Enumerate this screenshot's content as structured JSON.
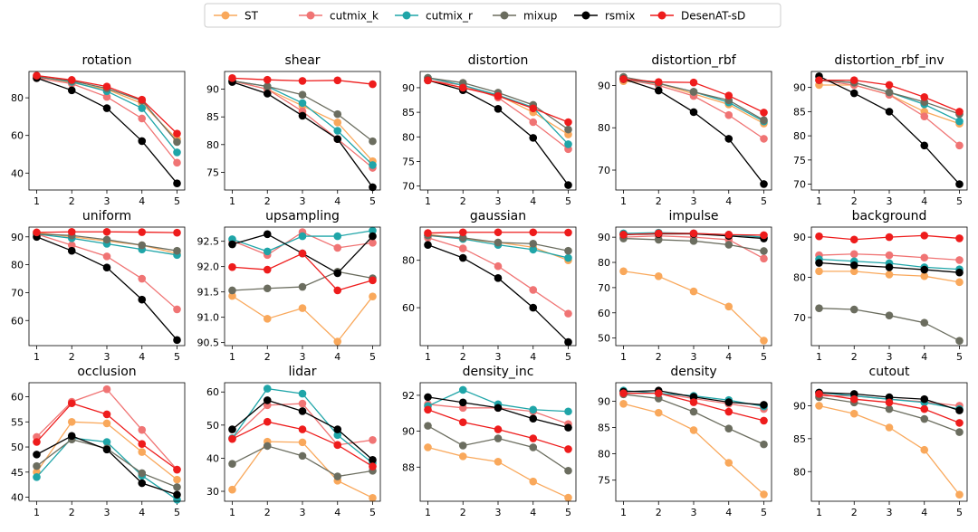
{
  "chart_data": {
    "type": "line",
    "legend": {
      "placement": "top-center",
      "entries": [
        {
          "name": "ST",
          "color": "#f9a85b"
        },
        {
          "name": "cutmix_k",
          "color": "#f07474"
        },
        {
          "name": "cutmix_r",
          "color": "#1fa5a8"
        },
        {
          "name": "mixup",
          "color": "#6b6d5f"
        },
        {
          "name": "rsmix",
          "color": "#000000"
        },
        {
          "name": "DesenAT-sD",
          "color": "#ee1c1c"
        }
      ]
    },
    "x": [
      1,
      2,
      3,
      4,
      5
    ],
    "panels": [
      {
        "title": "rotation",
        "ylim": [
          31,
          94
        ],
        "yticks": [
          40,
          60,
          80
        ],
        "series": {
          "ST": [
            91.5,
            88,
            84.5,
            77,
            58
          ],
          "cutmix_k": [
            90.5,
            87.5,
            80.5,
            69,
            45.5
          ],
          "cutmix_r": [
            91.3,
            88.5,
            83.5,
            74.5,
            51
          ],
          "mixup": [
            91,
            89,
            85,
            78.5,
            56.5
          ],
          "rsmix": [
            90.5,
            84,
            74.5,
            57,
            34.5
          ],
          "DesenAT-sD": [
            91.8,
            89.5,
            86,
            79,
            61
          ]
        }
      },
      {
        "title": "shear",
        "ylim": [
          71.8,
          93.2
        ],
        "yticks": [
          75,
          80,
          85,
          90
        ],
        "series": {
          "ST": [
            91.5,
            90,
            87,
            84,
            77
          ],
          "cutmix_k": [
            91.5,
            90,
            86,
            81,
            75.8
          ],
          "cutmix_r": [
            91.5,
            90.5,
            87.5,
            82.5,
            76.3
          ],
          "mixup": [
            91.5,
            90.5,
            89,
            85.5,
            80.6
          ],
          "rsmix": [
            91.3,
            89.2,
            85.2,
            81,
            72.3
          ],
          "DesenAT-sD": [
            92,
            91.7,
            91.5,
            91.6,
            90.9
          ]
        }
      },
      {
        "title": "distortion",
        "ylim": [
          69.2,
          93.3
        ],
        "yticks": [
          70,
          75,
          80,
          85,
          90
        ],
        "series": {
          "ST": [
            91.5,
            90,
            88.5,
            85,
            80.5
          ],
          "cutmix_k": [
            91.5,
            90.5,
            88,
            83,
            77.5
          ],
          "cutmix_r": [
            92,
            90.5,
            88.5,
            86,
            78.5
          ],
          "mixup": [
            92,
            91,
            89,
            86.5,
            81.5
          ],
          "rsmix": [
            91.5,
            89.5,
            85.7,
            79.8,
            70.2
          ],
          "DesenAT-sD": [
            91.5,
            90,
            88.3,
            85.8,
            83
          ]
        }
      },
      {
        "title": "distortion_rbf",
        "ylim": [
          65.3,
          93.3
        ],
        "yticks": [
          70,
          80,
          90
        ],
        "series": {
          "ST": [
            91,
            90.5,
            88,
            85.5,
            81
          ],
          "cutmix_k": [
            91.5,
            90,
            87.5,
            83,
            77.4
          ],
          "cutmix_r": [
            91.5,
            90.5,
            88.5,
            86,
            81.5
          ],
          "mixup": [
            92,
            90.5,
            88.5,
            86.5,
            81.8
          ],
          "rsmix": [
            91.5,
            88.8,
            83.7,
            77.4,
            66.7
          ],
          "DesenAT-sD": [
            91.5,
            90.8,
            90.7,
            87.6,
            83.6
          ]
        }
      },
      {
        "title": "distortion_rbf_inv",
        "ylim": [
          68.8,
          93.3
        ],
        "yticks": [
          70,
          75,
          80,
          85,
          90
        ],
        "series": {
          "ST": [
            90.5,
            90.5,
            88.5,
            85,
            82.5
          ],
          "cutmix_k": [
            91.5,
            90.5,
            88.5,
            84,
            78
          ],
          "cutmix_r": [
            91.5,
            91,
            89,
            86.5,
            83
          ],
          "mixup": [
            91.5,
            91,
            89,
            87,
            84.5
          ],
          "rsmix": [
            92.3,
            88.8,
            85,
            78,
            70
          ],
          "DesenAT-sD": [
            91.5,
            91.5,
            90.5,
            88,
            85
          ]
        }
      },
      {
        "title": "uniform",
        "ylim": [
          51,
          93.5
        ],
        "yticks": [
          60,
          70,
          80,
          90
        ],
        "series": {
          "ST": [
            91.5,
            90,
            88.5,
            87,
            84
          ],
          "cutmix_k": [
            91,
            87,
            83,
            75,
            64
          ],
          "cutmix_r": [
            91,
            89.5,
            87.5,
            85.5,
            83.5
          ],
          "mixup": [
            91,
            90.5,
            89,
            87,
            85
          ],
          "rsmix": [
            90,
            85,
            79,
            67.5,
            53
          ],
          "DesenAT-sD": [
            91.6,
            91.8,
            91.8,
            91.7,
            91.5
          ]
        }
      },
      {
        "title": "upsampling",
        "ylim": [
          90.44,
          92.78
        ],
        "yticks": [
          90.5,
          91.0,
          91.5,
          92.0,
          92.5
        ],
        "tick_decimals": 1,
        "series": {
          "ST": [
            91.42,
            90.97,
            91.18,
            90.52,
            91.41
          ],
          "cutmix_k": [
            92.51,
            92.23,
            92.68,
            92.37,
            92.47
          ],
          "cutmix_r": [
            92.54,
            92.3,
            92.6,
            92.6,
            92.71
          ],
          "mixup": [
            91.53,
            91.57,
            91.6,
            91.9,
            91.77
          ],
          "rsmix": [
            92.44,
            92.64,
            92.26,
            91.87,
            92.6
          ],
          "DesenAT-sD": [
            91.99,
            91.94,
            92.26,
            91.53,
            91.73
          ]
        }
      },
      {
        "title": "gaussian",
        "ylim": [
          44,
          94
        ],
        "yticks": [
          60,
          80
        ],
        "series": {
          "ST": [
            91,
            89,
            87.5,
            85.5,
            80
          ],
          "cutmix_k": [
            89.5,
            85,
            77.5,
            67.5,
            57.5
          ],
          "cutmix_r": [
            90.5,
            89,
            86.5,
            84.5,
            81
          ],
          "mixup": [
            90.5,
            89.5,
            87.5,
            87,
            84
          ],
          "rsmix": [
            86.5,
            81,
            72.5,
            60,
            45.5
          ],
          "DesenAT-sD": [
            91.5,
            91.8,
            91.8,
            91.8,
            91.7
          ]
        }
      },
      {
        "title": "impulse",
        "ylim": [
          47,
          94
        ],
        "yticks": [
          50,
          60,
          70,
          80,
          90
        ],
        "series": {
          "ST": [
            76.5,
            74.5,
            68.5,
            62.5,
            49
          ],
          "cutmix_k": [
            90,
            90.5,
            90,
            89,
            81.5
          ],
          "cutmix_r": [
            91.5,
            91.8,
            91.5,
            91,
            90
          ],
          "mixup": [
            89.5,
            89,
            88.5,
            87,
            84.5
          ],
          "rsmix": [
            91,
            91.3,
            91.3,
            90.5,
            89.5
          ],
          "DesenAT-sD": [
            91,
            91.5,
            91.5,
            91,
            90.8
          ]
        }
      },
      {
        "title": "background",
        "ylim": [
          63,
          92.5
        ],
        "yticks": [
          70,
          80,
          90
        ],
        "series": {
          "ST": [
            81.5,
            81.5,
            80.7,
            80.3,
            78.8
          ],
          "cutmix_k": [
            85.5,
            85.8,
            85.5,
            84.9,
            84.3
          ],
          "cutmix_r": [
            84.5,
            84,
            83.5,
            82.5,
            82
          ],
          "mixup": [
            72.3,
            72,
            70.5,
            68.7,
            64.2
          ],
          "rsmix": [
            83.6,
            83,
            82.5,
            81.9,
            81.2
          ],
          "DesenAT-sD": [
            90.2,
            89.4,
            90,
            90.4,
            89.7
          ]
        }
      },
      {
        "title": "occlusion",
        "ylim": [
          39.2,
          62.8
        ],
        "yticks": [
          40,
          45,
          50,
          55,
          60
        ],
        "series": {
          "ST": [
            45,
            55,
            54.7,
            49,
            43.5
          ],
          "cutmix_k": [
            52,
            59,
            61.5,
            53.4,
            45.5
          ],
          "cutmix_r": [
            44,
            51.8,
            51,
            44.3,
            39.5
          ],
          "mixup": [
            46.2,
            51.5,
            49.7,
            44.8,
            42
          ],
          "rsmix": [
            48.5,
            52.2,
            49.5,
            42.8,
            40.5
          ],
          "DesenAT-sD": [
            51,
            58.7,
            56.5,
            50.6,
            45.5
          ]
        }
      },
      {
        "title": "lidar",
        "ylim": [
          27,
          62.8
        ],
        "yticks": [
          30,
          40,
          50,
          60
        ],
        "series": {
          "ST": [
            30.5,
            45,
            44.8,
            33.2,
            28
          ],
          "cutmix_k": [
            46,
            56,
            56.5,
            44,
            45.5
          ],
          "cutmix_r": [
            46,
            61,
            59.5,
            47,
            38.5
          ],
          "mixup": [
            38.3,
            43.7,
            40.7,
            34.5,
            36.2
          ],
          "rsmix": [
            48.7,
            57.5,
            54.2,
            48.7,
            39.5
          ],
          "DesenAT-sD": [
            45.8,
            51,
            48.7,
            44,
            37.5
          ]
        }
      },
      {
        "title": "density_inc",
        "ylim": [
          86.1,
          92.7
        ],
        "yticks": [
          88,
          90,
          92
        ],
        "series": {
          "ST": [
            89.1,
            88.6,
            88.3,
            87.2,
            86.3
          ],
          "cutmix_k": [
            91.5,
            91.3,
            91.3,
            91.1,
            90.4
          ],
          "cutmix_r": [
            91.4,
            92.3,
            91.5,
            91.2,
            91.1
          ],
          "mixup": [
            90.3,
            89.2,
            89.6,
            89.1,
            87.8
          ],
          "rsmix": [
            91.9,
            91.6,
            91.3,
            90.7,
            90.2
          ],
          "DesenAT-sD": [
            91.2,
            90.5,
            90.1,
            89.6,
            89
          ]
        }
      },
      {
        "title": "density",
        "ylim": [
          71,
          93.5
        ],
        "yticks": [
          75,
          80,
          85,
          90
        ],
        "series": {
          "ST": [
            89.5,
            87.8,
            84.5,
            78.3,
            72.3
          ],
          "cutmix_k": [
            91.5,
            91.5,
            90.5,
            89.5,
            88.5
          ],
          "cutmix_r": [
            92,
            91.5,
            91,
            90.2,
            89
          ],
          "mixup": [
            91.3,
            90.5,
            88,
            84.8,
            81.8
          ],
          "rsmix": [
            91.8,
            92,
            90.8,
            89.8,
            89.3
          ],
          "DesenAT-sD": [
            91.5,
            91.5,
            89.8,
            88,
            86.3
          ]
        }
      },
      {
        "title": "cutout",
        "ylim": [
          75.5,
          93.5
        ],
        "yticks": [
          80,
          85,
          90
        ],
        "series": {
          "ST": [
            90,
            88.8,
            86.7,
            83.3,
            76.5
          ],
          "cutmix_k": [
            91.5,
            91.5,
            91,
            90.6,
            90
          ],
          "cutmix_r": [
            92,
            91.5,
            91,
            90.5,
            89.5
          ],
          "mixup": [
            91.3,
            90.5,
            89.5,
            88,
            86
          ],
          "rsmix": [
            92,
            91.8,
            91.3,
            91,
            89.3
          ],
          "DesenAT-sD": [
            91.8,
            91,
            90.5,
            89.5,
            87.4
          ]
        }
      }
    ]
  }
}
